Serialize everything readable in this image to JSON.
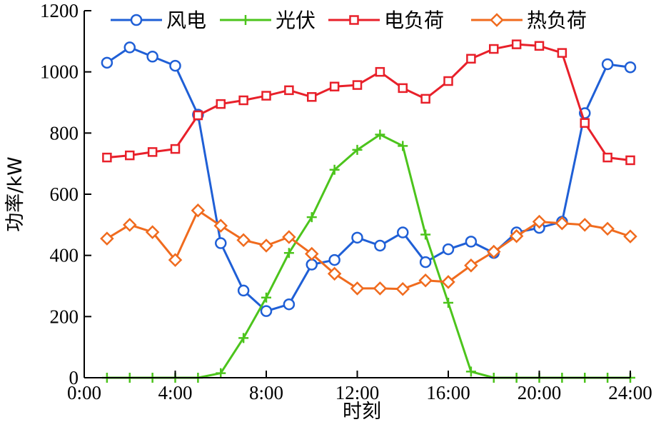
{
  "chart_data": {
    "type": "line",
    "title": "",
    "xlabel": "时刻",
    "ylabel": "功率/kW",
    "xlim": [
      0,
      24
    ],
    "ylim": [
      0,
      1200
    ],
    "x_ticks": [
      0,
      4,
      8,
      12,
      16,
      20,
      24
    ],
    "x_tick_labels": [
      "0:00",
      "4:00",
      "8:00",
      "12:00",
      "16:00",
      "20:00",
      "24:00"
    ],
    "y_ticks": [
      0,
      200,
      400,
      600,
      800,
      1000,
      1200
    ],
    "y_tick_labels": [
      "0",
      "200",
      "400",
      "600",
      "800",
      "1000",
      "1200"
    ],
    "legend_position": "top",
    "grid": false,
    "x": [
      1,
      2,
      3,
      4,
      5,
      6,
      7,
      8,
      9,
      10,
      11,
      12,
      13,
      14,
      15,
      16,
      17,
      18,
      19,
      20,
      21,
      22,
      23,
      24
    ],
    "series": [
      {
        "name": "风电",
        "color": "#1f5fd6",
        "marker": "circle",
        "values": [
          1030,
          1080,
          1050,
          1020,
          860,
          440,
          285,
          218,
          240,
          370,
          385,
          458,
          432,
          475,
          378,
          420,
          445,
          408,
          475,
          490,
          510,
          865,
          1025,
          1015
        ]
      },
      {
        "name": "光伏",
        "color": "#4cc41c",
        "marker": "plus",
        "values": [
          0,
          0,
          0,
          0,
          0,
          15,
          130,
          262,
          408,
          525,
          680,
          745,
          795,
          758,
          468,
          245,
          20,
          0,
          0,
          0,
          0,
          0,
          0,
          0
        ]
      },
      {
        "name": "电负荷",
        "color": "#e8202a",
        "marker": "square",
        "values": [
          720,
          727,
          738,
          748,
          858,
          895,
          907,
          922,
          940,
          918,
          952,
          957,
          1000,
          947,
          912,
          970,
          1043,
          1075,
          1090,
          1085,
          1062,
          833,
          720,
          711
        ]
      },
      {
        "name": "热负荷",
        "color": "#f06b1e",
        "marker": "diamond",
        "values": [
          455,
          500,
          476,
          385,
          547,
          497,
          450,
          432,
          460,
          405,
          340,
          292,
          292,
          290,
          318,
          313,
          367,
          412,
          463,
          510,
          505,
          500,
          487,
          462
        ]
      }
    ]
  }
}
